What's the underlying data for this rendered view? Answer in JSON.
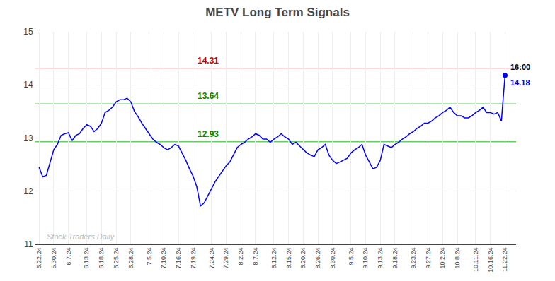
{
  "chart_data": {
    "type": "line",
    "title": "METV Long Term Signals",
    "categories": [
      "5.22.24",
      null,
      null,
      null,
      "5.30.24",
      null,
      null,
      null,
      "6.7.24",
      null,
      null,
      null,
      null,
      "6.13.24",
      null,
      null,
      null,
      "6.18.24",
      null,
      null,
      null,
      "6.25.24",
      null,
      null,
      null,
      "6.28.24",
      null,
      null,
      null,
      null,
      "7.5.24",
      null,
      null,
      null,
      "7.10.24",
      null,
      null,
      null,
      "7.16.24",
      null,
      null,
      null,
      "7.19.24",
      null,
      null,
      null,
      null,
      "7.24.24",
      null,
      null,
      null,
      "7.29.24",
      null,
      null,
      null,
      "8.2.24",
      null,
      null,
      null,
      "8.7.24",
      null,
      null,
      null,
      null,
      "8.12.24",
      null,
      null,
      null,
      "8.15.24",
      null,
      null,
      null,
      "8.20.24",
      null,
      null,
      null,
      "8.26.24",
      null,
      null,
      null,
      "8.30.24",
      null,
      null,
      null,
      null,
      "9.5.24",
      null,
      null,
      null,
      "9.10.24",
      null,
      null,
      null,
      "9.13.24",
      null,
      null,
      null,
      "9.18.24",
      null,
      null,
      null,
      null,
      "9.23.24",
      null,
      null,
      null,
      "9.27.24",
      null,
      null,
      null,
      "10.2.24",
      null,
      null,
      null,
      "10.8.24",
      null,
      null,
      null,
      null,
      "10.11.24",
      null,
      null,
      null,
      "10.16.24",
      null,
      null,
      null,
      "11.22.24"
    ],
    "values": [
      12.45,
      12.27,
      12.3,
      12.55,
      12.78,
      12.88,
      13.05,
      13.08,
      13.1,
      12.95,
      13.05,
      13.08,
      13.18,
      13.25,
      13.22,
      13.12,
      13.18,
      13.28,
      13.48,
      13.52,
      13.58,
      13.68,
      13.72,
      13.72,
      13.75,
      13.68,
      13.5,
      13.4,
      13.28,
      13.18,
      13.08,
      12.98,
      12.92,
      12.88,
      12.82,
      12.78,
      12.82,
      12.88,
      12.85,
      12.72,
      12.58,
      12.42,
      12.28,
      12.08,
      11.72,
      11.78,
      11.92,
      12.05,
      12.18,
      12.28,
      12.38,
      12.48,
      12.55,
      12.68,
      12.82,
      12.88,
      12.92,
      12.98,
      13.02,
      13.08,
      13.05,
      12.98,
      12.98,
      12.92,
      12.98,
      13.02,
      13.08,
      13.02,
      12.98,
      12.88,
      12.92,
      12.85,
      12.78,
      12.72,
      12.68,
      12.65,
      12.78,
      12.82,
      12.88,
      12.68,
      12.58,
      12.52,
      12.55,
      12.58,
      12.62,
      12.72,
      12.78,
      12.82,
      12.88,
      12.68,
      12.55,
      12.42,
      12.45,
      12.58,
      12.88,
      12.85,
      12.82,
      12.88,
      12.92,
      12.98,
      13.02,
      13.08,
      13.12,
      13.18,
      13.22,
      13.28,
      13.28,
      13.32,
      13.38,
      13.42,
      13.48,
      13.52,
      13.58,
      13.48,
      13.42,
      13.42,
      13.38,
      13.38,
      13.42,
      13.48,
      13.52,
      13.58,
      13.48,
      13.48,
      13.45,
      13.48,
      13.32,
      14.18
    ],
    "color": "blue",
    "xlim": [
      -1,
      130
    ],
    "ylim": [
      11,
      15
    ],
    "yticks": [
      11,
      12,
      13,
      14,
      15
    ],
    "grid": true,
    "hlines": [
      {
        "value": 14.31,
        "label": "14.31",
        "color": "#ffcccc",
        "label_color": "#cc0000"
      },
      {
        "value": 13.64,
        "label": "13.64",
        "color": "#66cc66",
        "label_color": "#008800"
      },
      {
        "value": 12.93,
        "label": "12.93",
        "color": "#66cc66",
        "label_color": "#008800"
      }
    ],
    "last_point": {
      "marker": "dot",
      "color": "blue",
      "label": "16:00",
      "label_color": "black",
      "value_label": "14.18",
      "value_color": "#0000cc"
    },
    "watermark": {
      "text": "Stock Traders Daily",
      "color": "#bbbbbb"
    }
  }
}
